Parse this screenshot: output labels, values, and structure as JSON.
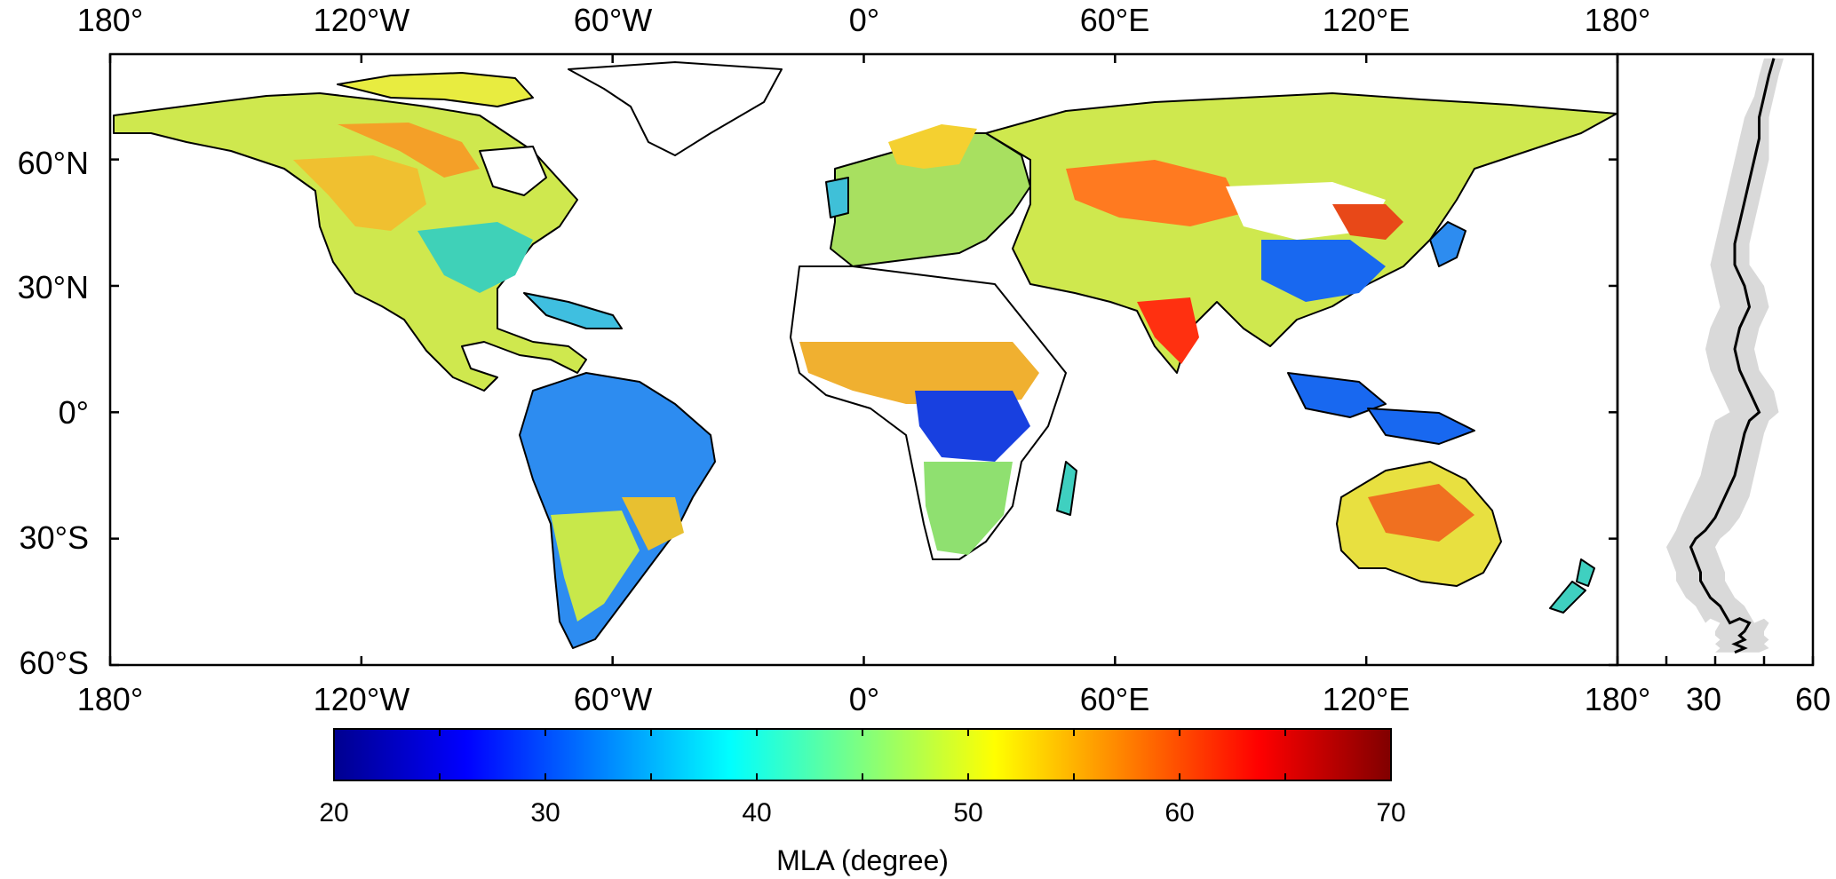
{
  "map": {
    "lon_labels": [
      "180°",
      "120°W",
      "60°W",
      "0°",
      "60°E",
      "120°E",
      "180°"
    ],
    "lat_labels": [
      "60°N",
      "30°N",
      "0°",
      "30°S",
      "60°S"
    ]
  },
  "profile": {
    "x_labels": [
      "30",
      "60"
    ]
  },
  "colorbar": {
    "label": "MLA (degree)",
    "ticks": [
      "20",
      "30",
      "40",
      "50",
      "60",
      "70"
    ],
    "range": [
      20,
      70
    ],
    "colormap": "jet"
  },
  "colors": {
    "ocean": "#ffffff",
    "coastline": "#000000",
    "profile_mean": "#000000",
    "profile_band": "#d9d9d9"
  },
  "chart_data": {
    "type": "line",
    "title": "",
    "xlabel": "",
    "ylabel": "",
    "xlim": [
      20,
      60
    ],
    "ylim": [
      -60,
      85
    ],
    "series": [
      {
        "x": [
          52,
          51,
          50,
          49,
          49,
          48,
          47,
          46,
          45,
          44,
          44,
          46,
          47,
          45,
          44,
          45,
          47,
          49,
          47,
          46,
          45,
          44,
          42,
          40,
          38,
          36,
          35,
          36,
          37,
          37,
          38,
          39,
          40,
          41,
          42,
          43,
          45,
          47,
          46,
          45,
          46,
          44,
          46,
          44
        ],
        "y": [
          84,
          80,
          75,
          70,
          65,
          60,
          55,
          50,
          45,
          40,
          35,
          30,
          25,
          20,
          15,
          10,
          5,
          0,
          -2,
          -5,
          -10,
          -15,
          -20,
          -25,
          -28,
          -30,
          -32,
          -35,
          -38,
          -40,
          -42,
          -44,
          -45,
          -46,
          -48,
          -50,
          -49,
          -50,
          -52,
          -53,
          -54,
          -55,
          -56,
          -57
        ]
      },
      {
        "x": [
          50,
          49,
          48,
          46,
          45,
          44,
          43,
          42,
          41,
          40,
          39,
          40,
          41,
          39,
          38,
          39,
          41,
          43,
          40,
          39,
          38,
          37,
          35,
          33,
          32,
          31,
          30,
          31,
          32,
          32,
          33,
          34,
          35,
          36,
          37,
          38,
          39,
          41,
          40,
          40,
          41,
          40,
          41,
          40
        ],
        "y": [
          84,
          80,
          75,
          70,
          65,
          60,
          55,
          50,
          45,
          40,
          35,
          30,
          25,
          20,
          15,
          10,
          5,
          0,
          -2,
          -5,
          -10,
          -15,
          -20,
          -25,
          -28,
          -30,
          -32,
          -35,
          -38,
          -40,
          -42,
          -44,
          -45,
          -46,
          -48,
          -50,
          -49,
          -50,
          -52,
          -53,
          -54,
          -55,
          -56,
          -57
        ]
      },
      {
        "x": [
          54,
          53,
          52,
          51,
          51,
          51,
          50,
          49,
          48,
          47,
          47,
          50,
          51,
          49,
          48,
          49,
          52,
          53,
          51,
          50,
          49,
          48,
          47,
          45,
          43,
          41,
          40,
          41,
          42,
          42,
          43,
          44,
          45,
          46,
          47,
          48,
          50,
          51,
          50,
          50,
          51,
          50,
          51,
          49
        ],
        "y": [
          84,
          80,
          75,
          70,
          65,
          60,
          55,
          50,
          45,
          40,
          35,
          30,
          25,
          20,
          15,
          10,
          5,
          0,
          -2,
          -5,
          -10,
          -15,
          -20,
          -25,
          -28,
          -30,
          -32,
          -35,
          -38,
          -40,
          -42,
          -44,
          -45,
          -46,
          -48,
          -50,
          -49,
          -50,
          -52,
          -53,
          -54,
          -55,
          -56,
          -57
        ]
      }
    ]
  }
}
